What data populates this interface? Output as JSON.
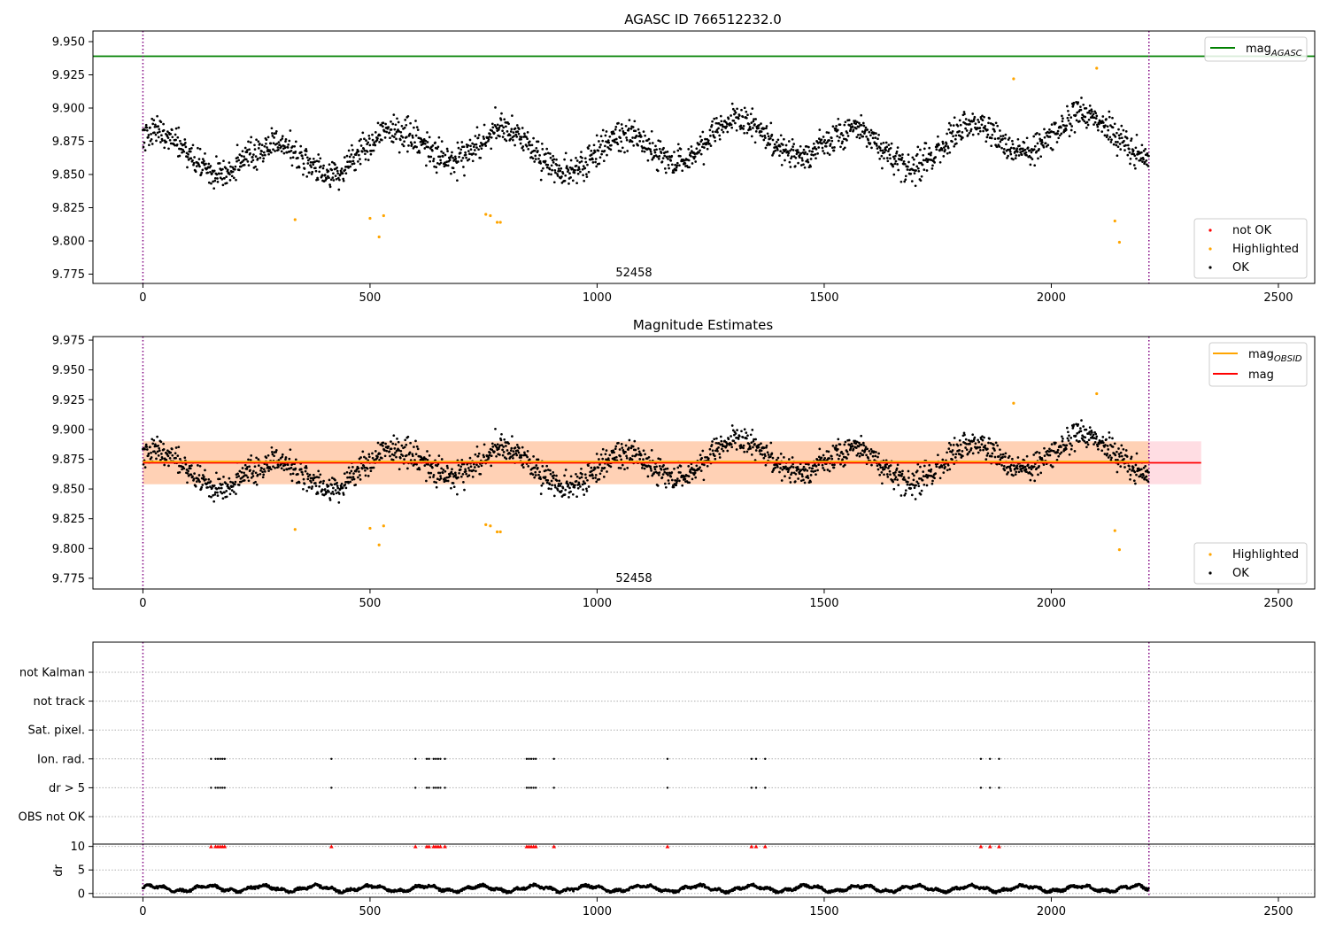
{
  "chart_data": [
    {
      "type": "scatter",
      "title": "AGASC ID 766512232.0",
      "xlim": [
        -110,
        2580
      ],
      "ylim": [
        9.768,
        9.958
      ],
      "x_ticks": [
        0,
        500,
        1000,
        1500,
        2000,
        2500
      ],
      "y_ticks": [
        "9.775",
        "9.800",
        "9.825",
        "9.850",
        "9.875",
        "9.900",
        "9.925",
        "9.950"
      ],
      "annotation": {
        "text": "52458",
        "x": 1105,
        "y": 9.7745
      },
      "obs_boundaries": [
        0,
        2215
      ],
      "mag_agasc": 9.939,
      "highlighted_points": [
        [
          335,
          9.816
        ],
        [
          500,
          9.817
        ],
        [
          520,
          9.803
        ],
        [
          530,
          9.819
        ],
        [
          755,
          9.82
        ],
        [
          765,
          9.819
        ],
        [
          780,
          9.814
        ],
        [
          787,
          9.814
        ],
        [
          1917,
          9.922
        ],
        [
          2100,
          9.93
        ],
        [
          2140,
          9.815
        ],
        [
          2150,
          9.799
        ]
      ],
      "legend_top": [
        {
          "label": "mag",
          "subscript": "AGASC",
          "color": "#008000"
        }
      ],
      "legend_bottom": [
        {
          "label": "not OK",
          "color": "#ff0000"
        },
        {
          "label": "Highlighted",
          "color": "#ffa500"
        },
        {
          "label": "OK",
          "color": "#000000"
        }
      ]
    },
    {
      "type": "scatter",
      "title": "Magnitude Estimates",
      "xlim": [
        -110,
        2580
      ],
      "ylim": [
        9.766,
        9.978
      ],
      "x_ticks": [
        0,
        500,
        1000,
        1500,
        2000,
        2500
      ],
      "y_ticks": [
        "9.775",
        "9.800",
        "9.825",
        "9.850",
        "9.875",
        "9.900",
        "9.925",
        "9.950",
        "9.975"
      ],
      "annotation": {
        "text": "52458",
        "x": 1105,
        "y": 9.7725
      },
      "obs_boundaries": [
        0,
        2215
      ],
      "mag": 9.872,
      "mag_obsid": 9.873,
      "band_mag": [
        9.854,
        9.89
      ],
      "band_obsid": [
        9.854,
        9.89
      ],
      "band_extent": [
        0,
        2330
      ],
      "obsid_extent": [
        0,
        2215
      ],
      "legend_top": [
        {
          "label": "mag",
          "subscript": "OBSID",
          "color": "#ffa500"
        },
        {
          "label": "mag",
          "subscript": "",
          "color": "#ff0000"
        }
      ],
      "legend_bottom": [
        {
          "label": "Highlighted",
          "color": "#ffa500"
        },
        {
          "label": "OK",
          "color": "#000000"
        }
      ]
    },
    {
      "type": "scatter",
      "title": "",
      "xlim": [
        -110,
        2580
      ],
      "x_ticks": [
        0,
        500,
        1000,
        1500,
        2000,
        2500
      ],
      "flag_categories": [
        "not Kalman",
        "not track",
        "Sat. pixel.",
        "Ion. rad.",
        "dr > 5",
        "OBS not OK"
      ],
      "flag_events": [
        150,
        160,
        165,
        170,
        175,
        180,
        415,
        600,
        625,
        630,
        640,
        645,
        650,
        655,
        665,
        845,
        850,
        855,
        860,
        865,
        905,
        1155,
        1340,
        1350,
        1370,
        1845,
        1865,
        1885
      ],
      "flagged_rows": [
        "Ion. rad.",
        "dr > 5"
      ],
      "dr_ylabel": "dr",
      "dr_ylim": [
        -0.8,
        10.5
      ],
      "dr_ticks": [
        "0",
        "5",
        "10"
      ],
      "dr_clip": 10
    }
  ]
}
